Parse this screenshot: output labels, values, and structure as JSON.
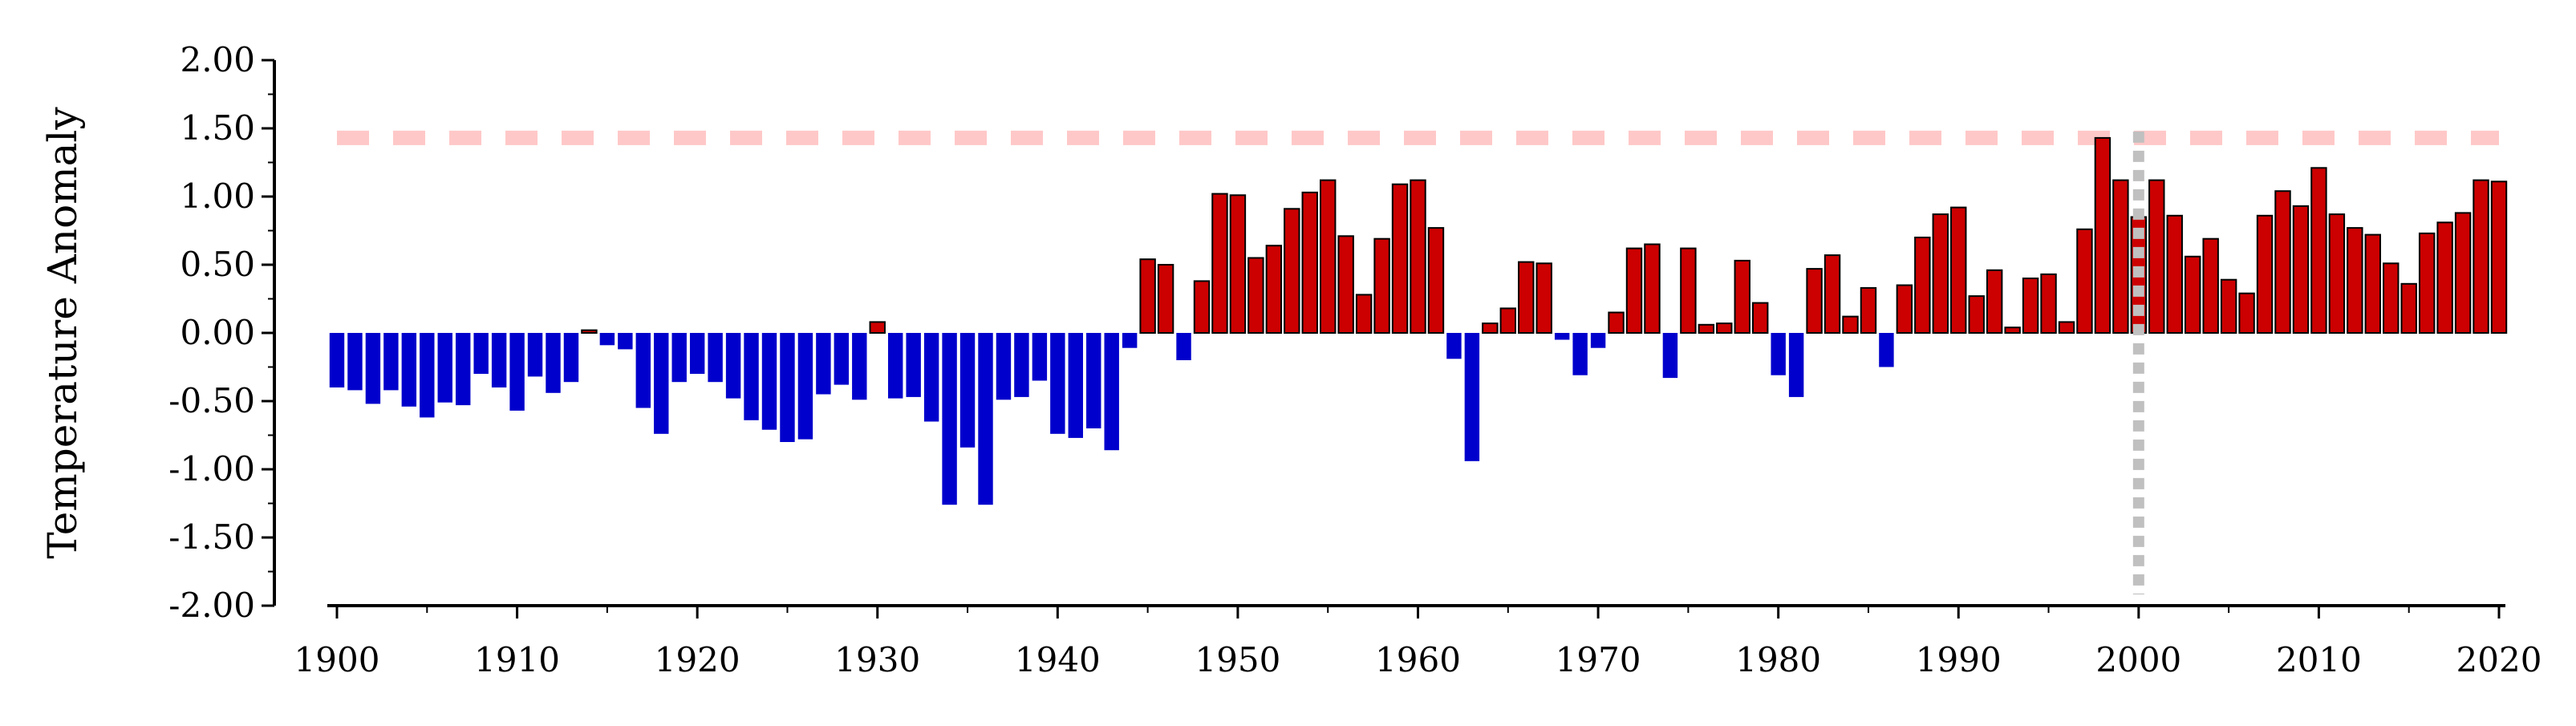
{
  "chart_data": {
    "type": "bar",
    "title": "",
    "xlabel": "",
    "ylabel": "Temperature Anomaly",
    "xlim": [
      1900,
      2020
    ],
    "ylim": [
      -2.0,
      2.0
    ],
    "x_ticks": [
      "1900",
      "1910",
      "1920",
      "1930",
      "1940",
      "1950",
      "1960",
      "1970",
      "1980",
      "1990",
      "2000",
      "2010",
      "2020"
    ],
    "y_ticks": [
      "2.00",
      "1.50",
      "1.00",
      "0.50",
      "0.00",
      "-0.50",
      "-1.00",
      "-1.50",
      "-2.00"
    ],
    "grid": false,
    "colors": {
      "positive": "#cc0000",
      "negative": "#0000cc",
      "positive_edge": "#000000",
      "reference_line": "#ffc8c8",
      "marker_line": "#c0c0c0"
    },
    "reference_line": {
      "y": 1.43
    },
    "marker_line": {
      "x": 2000
    },
    "years": [
      1900,
      1901,
      1902,
      1903,
      1904,
      1905,
      1906,
      1907,
      1908,
      1909,
      1910,
      1911,
      1912,
      1913,
      1914,
      1915,
      1916,
      1917,
      1918,
      1919,
      1920,
      1921,
      1922,
      1923,
      1924,
      1925,
      1926,
      1927,
      1928,
      1929,
      1930,
      1931,
      1932,
      1933,
      1934,
      1935,
      1936,
      1937,
      1938,
      1939,
      1940,
      1941,
      1942,
      1943,
      1944,
      1945,
      1946,
      1947,
      1948,
      1949,
      1950,
      1951,
      1952,
      1953,
      1954,
      1955,
      1956,
      1957,
      1958,
      1959,
      1960,
      1961,
      1962,
      1963,
      1964,
      1965,
      1966,
      1967,
      1968,
      1969,
      1970,
      1971,
      1972,
      1973,
      1974,
      1975,
      1976,
      1977,
      1978,
      1979,
      1980,
      1981,
      1982,
      1983,
      1984,
      1985,
      1986,
      1987,
      1988,
      1989,
      1990,
      1991,
      1992,
      1993,
      1994,
      1995,
      1996,
      1997,
      1998,
      1999,
      2000,
      2001,
      2002,
      2003,
      2004,
      2005,
      2006,
      2007,
      2008,
      2009,
      2010,
      2011,
      2012,
      2013,
      2014,
      2015,
      2016,
      2017,
      2018,
      2019,
      2020
    ],
    "values": [
      -0.4,
      -0.42,
      -0.52,
      -0.42,
      -0.54,
      -0.62,
      -0.51,
      -0.53,
      -0.3,
      -0.4,
      -0.57,
      -0.32,
      -0.44,
      -0.36,
      0.02,
      -0.09,
      -0.12,
      -0.55,
      -0.74,
      -0.36,
      -0.3,
      -0.36,
      -0.48,
      -0.64,
      -0.71,
      -0.8,
      -0.78,
      -0.45,
      -0.38,
      -0.49,
      0.08,
      -0.48,
      -0.47,
      -0.65,
      -1.26,
      -0.84,
      -1.26,
      -0.49,
      -0.47,
      -0.35,
      -0.74,
      -0.77,
      -0.7,
      -0.86,
      -0.11,
      0.54,
      0.5,
      -0.2,
      0.38,
      1.02,
      1.01,
      0.55,
      0.64,
      0.91,
      1.03,
      1.12,
      0.71,
      0.28,
      0.69,
      1.09,
      1.12,
      0.77,
      -0.19,
      -0.94,
      0.07,
      0.18,
      0.52,
      0.51,
      -0.05,
      -0.31,
      -0.11,
      0.15,
      0.62,
      0.65,
      -0.33,
      0.62,
      0.06,
      0.07,
      0.53,
      0.22,
      -0.31,
      -0.47,
      0.47,
      0.57,
      0.12,
      0.33,
      -0.25,
      0.35,
      0.7,
      0.87,
      0.92,
      0.27,
      0.46,
      0.04,
      0.4,
      0.43,
      0.08,
      0.76,
      1.43,
      1.12,
      0.85,
      1.12,
      0.86,
      0.56,
      0.69,
      0.39,
      0.29,
      0.86,
      1.04,
      0.93,
      1.21,
      0.87,
      0.77,
      0.72,
      0.51,
      0.36,
      0.73,
      0.81,
      0.88,
      1.12,
      1.11
    ]
  }
}
